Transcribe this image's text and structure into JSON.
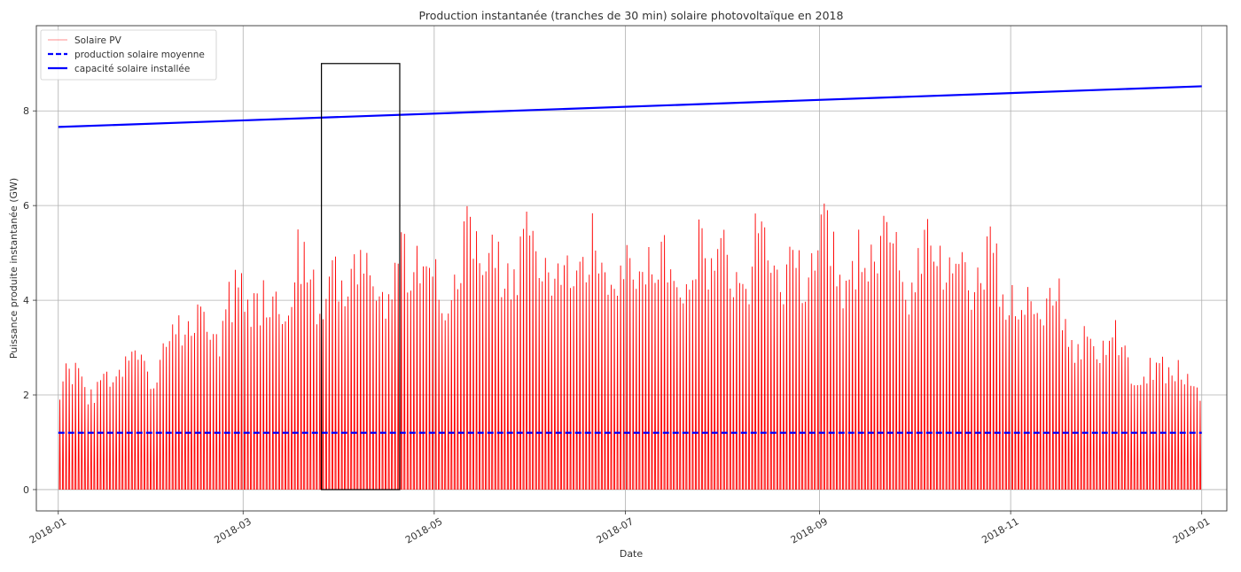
{
  "chart_data": {
    "type": "line",
    "title": "Production instantanée (tranches de 30 min) solaire photovoltaïque en 2018",
    "xlabel": "Date",
    "ylabel": "Puissance produite instantanée (GW)",
    "x_range": [
      "2017-12-25",
      "2019-01-09"
    ],
    "xlim": [
      0,
      380
    ],
    "ylim": [
      -0.45,
      9.8
    ],
    "x_ticks": [
      {
        "label": "2018-01",
        "day": 0
      },
      {
        "label": "2018-03",
        "day": 59
      },
      {
        "label": "2018-05",
        "day": 120
      },
      {
        "label": "2018-07",
        "day": 181
      },
      {
        "label": "2018-09",
        "day": 243
      },
      {
        "label": "2018-11",
        "day": 304
      },
      {
        "label": "2019-01",
        "day": 365
      }
    ],
    "y_ticks": [
      0,
      2,
      4,
      6,
      8
    ],
    "grid": true,
    "legend_position": "top-left",
    "series": [
      {
        "name": "Solaire PV",
        "color": "#ff0000",
        "style": "thin-daily-peaks",
        "x": [
          "2018-01",
          "2018-02",
          "2018-03",
          "2018-04",
          "2018-05",
          "2018-06",
          "2018-07",
          "2018-08",
          "2018-09",
          "2018-10",
          "2018-11",
          "2018-12"
        ],
        "monthly_peak_values": [
          2.9,
          4.6,
          5.7,
          6.0,
          6.3,
          6.4,
          6.2,
          6.2,
          6.3,
          6.3,
          4.7,
          3.2
        ]
      },
      {
        "name": "production solaire moyenne",
        "color": "#0000ff",
        "style": "dashed",
        "x": [
          "2018-01-01",
          "2019-01-01"
        ],
        "y": [
          1.2,
          1.2
        ]
      },
      {
        "name": "capacité solaire installée",
        "color": "#0000ff",
        "style": "solid",
        "x": [
          "2018-01-01",
          "2019-01-01"
        ],
        "y": [
          7.66,
          8.52
        ]
      }
    ],
    "annotations": [
      {
        "type": "rectangle",
        "x": [
          "2018-03-26",
          "2018-04-20"
        ],
        "y": [
          0,
          9.0
        ],
        "color": "#000000"
      }
    ]
  }
}
